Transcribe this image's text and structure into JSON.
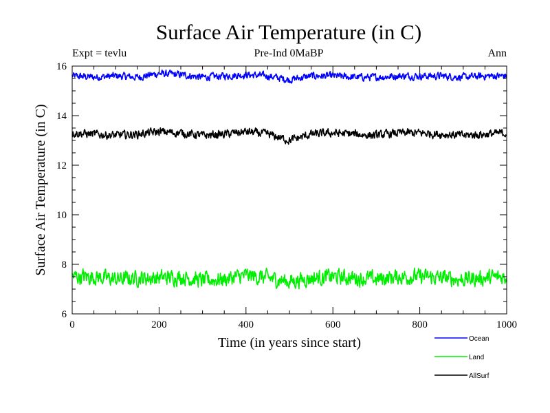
{
  "chart_data": {
    "type": "line",
    "title": "Surface Air Temperature (in C)",
    "subtitle_left": "Expt = tevlu",
    "subtitle_center": "Pre-Ind 0MaBP",
    "subtitle_right": "Ann",
    "xlabel": "Time (in years since start)",
    "ylabel": "Surface Air Temperature (in C)",
    "xlim": [
      0,
      1000
    ],
    "ylim": [
      6,
      16
    ],
    "xticks": [
      0,
      200,
      400,
      600,
      800,
      1000
    ],
    "xtick_labels": [
      "0",
      "200",
      "400",
      "600",
      "800",
      "1000"
    ],
    "yticks": [
      6,
      8,
      10,
      12,
      14,
      16
    ],
    "ytick_labels": [
      "6",
      "8",
      "10",
      "12",
      "14",
      "16"
    ],
    "legend_position": "bottom-right outside",
    "series": [
      {
        "name": "Ocean",
        "color": "#0000ff",
        "mean": 15.6,
        "amplitude": 0.35,
        "x": [
          0,
          50,
          100,
          150,
          200,
          250,
          300,
          350,
          400,
          450,
          500,
          550,
          600,
          650,
          700,
          750,
          800,
          850,
          900,
          950,
          1000
        ],
        "values": [
          15.6,
          15.55,
          15.6,
          15.55,
          15.7,
          15.65,
          15.55,
          15.6,
          15.65,
          15.6,
          15.45,
          15.6,
          15.6,
          15.55,
          15.55,
          15.6,
          15.6,
          15.6,
          15.55,
          15.6,
          15.6
        ]
      },
      {
        "name": "Land",
        "color": "#00ee00",
        "mean": 7.45,
        "amplitude": 0.75,
        "x": [
          0,
          50,
          100,
          150,
          200,
          250,
          300,
          350,
          400,
          450,
          500,
          550,
          600,
          650,
          700,
          750,
          800,
          850,
          900,
          950,
          1000
        ],
        "values": [
          7.5,
          7.5,
          7.4,
          7.45,
          7.45,
          7.5,
          7.35,
          7.4,
          7.55,
          7.45,
          7.3,
          7.45,
          7.5,
          7.45,
          7.4,
          7.5,
          7.5,
          7.45,
          7.4,
          7.45,
          7.5
        ]
      },
      {
        "name": "AllSurf",
        "color": "#000000",
        "mean": 13.25,
        "amplitude": 0.4,
        "x": [
          0,
          50,
          100,
          150,
          200,
          250,
          300,
          350,
          400,
          450,
          500,
          550,
          600,
          650,
          700,
          750,
          800,
          850,
          900,
          950,
          1000
        ],
        "values": [
          13.3,
          13.25,
          13.2,
          13.25,
          13.35,
          13.3,
          13.2,
          13.25,
          13.35,
          13.25,
          13.0,
          13.25,
          13.3,
          13.25,
          13.2,
          13.3,
          13.3,
          13.25,
          13.2,
          13.25,
          13.3
        ]
      }
    ]
  }
}
